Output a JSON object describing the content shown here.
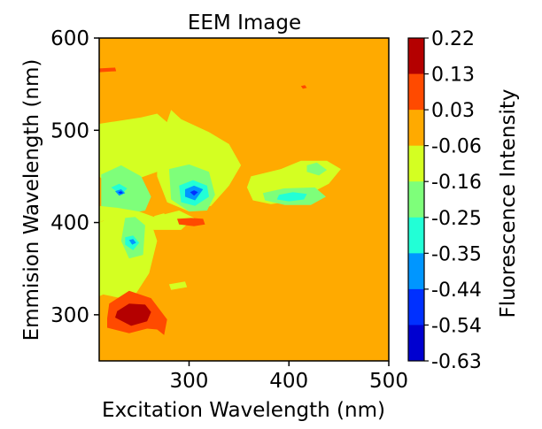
{
  "chart_data": {
    "type": "heatmap",
    "title": "EEM Image",
    "xlabel": "Excitation Wavelength (nm)",
    "ylabel": "Emmision Wavelength (nm)",
    "colorbar_label": "Fluorescence Intensity",
    "xlim": [
      210,
      500
    ],
    "ylim": [
      250,
      600
    ],
    "xticks": [
      300,
      400,
      500
    ],
    "yticks": [
      300,
      400,
      500,
      600
    ],
    "background_level": 0.03,
    "levels": [
      "0.22",
      "0.13",
      "0.03",
      "-0.06",
      "-0.16",
      "-0.25",
      "-0.35",
      "-0.44",
      "-0.54",
      "-0.63"
    ],
    "level_colors": [
      "#b40000",
      "#ff4a00",
      "#ffaa00",
      "#d4ff22",
      "#7eff7a",
      "#22ffd6",
      "#0096ff",
      "#0030ff",
      "#0000d0",
      "#00007a"
    ],
    "regions": [
      {
        "name": "peak-a-outer",
        "level": "-0.06",
        "x": [
          210,
          252,
          268,
          282,
          285,
          268,
          250,
          232,
          212,
          210
        ],
        "y": [
          507,
          514,
          518,
          505,
          478,
          455,
          448,
          462,
          448,
          450
        ]
      },
      {
        "name": "peak-b-outer",
        "level": "-0.06",
        "x": [
          268,
          282,
          292,
          320,
          340,
          352,
          340,
          322,
          300,
          278,
          268
        ],
        "y": [
          478,
          522,
          512,
          498,
          485,
          462,
          440,
          418,
          412,
          422,
          450
        ]
      },
      {
        "name": "peak-a-mid",
        "level": "-0.16",
        "x": [
          212,
          232,
          252,
          262,
          256,
          232,
          212
        ],
        "y": [
          452,
          462,
          450,
          428,
          413,
          408,
          418
        ]
      },
      {
        "name": "peak-a-inner",
        "level": "-0.25",
        "x": [
          222,
          230,
          238,
          232
        ],
        "y": [
          438,
          442,
          437,
          430
        ]
      },
      {
        "name": "peak-a-core",
        "level": "-0.35",
        "x": [
          226,
          232,
          236,
          230
        ],
        "y": [
          434,
          436,
          432,
          429
        ]
      },
      {
        "name": "peak-a-center",
        "level": "-0.44",
        "x": [
          229,
          232,
          234,
          231
        ],
        "y": [
          433,
          434,
          432,
          431
        ]
      },
      {
        "name": "peak-b-mid",
        "level": "-0.16",
        "x": [
          280,
          300,
          320,
          326,
          318,
          300,
          282
        ],
        "y": [
          458,
          463,
          455,
          430,
          413,
          412,
          425
        ]
      },
      {
        "name": "peak-b-inner",
        "level": "-0.25",
        "x": [
          290,
          304,
          318,
          320,
          306,
          292
        ],
        "y": [
          440,
          446,
          440,
          428,
          418,
          422
        ]
      },
      {
        "name": "peak-b-core",
        "level": "-0.35",
        "x": [
          296,
          305,
          314,
          306,
          296
        ],
        "y": [
          436,
          440,
          436,
          424,
          428
        ]
      },
      {
        "name": "peak-b-center",
        "level": "-0.44",
        "x": [
          301,
          305,
          309,
          305
        ],
        "y": [
          433,
          435,
          433,
          429
        ]
      },
      {
        "name": "upper-band",
        "level": "-0.06",
        "x": [
          210,
          228,
          250,
          265,
          290,
          305,
          292,
          265,
          250,
          238,
          214,
          210
        ],
        "y": [
          418,
          416,
          412,
          406,
          413,
          405,
          392,
          392,
          396,
          400,
          402,
          400
        ]
      },
      {
        "name": "mid-column",
        "level": "-0.06",
        "x": [
          210,
          238,
          256,
          262,
          268,
          260,
          245,
          232,
          214,
          210
        ],
        "y": [
          400,
          412,
          406,
          400,
          380,
          345,
          320,
          318,
          322,
          320
        ]
      },
      {
        "name": "mid-column-green",
        "level": "-0.16",
        "x": [
          236,
          246,
          256,
          254,
          240,
          232
        ],
        "y": [
          405,
          406,
          397,
          365,
          361,
          380
        ]
      },
      {
        "name": "mid-column-green2",
        "level": "-0.25",
        "x": [
          236,
          244,
          250,
          244,
          236
        ],
        "y": [
          384,
          386,
          378,
          370,
          376
        ]
      },
      {
        "name": "mid-column-core",
        "level": "-0.35",
        "x": [
          240,
          244,
          247,
          243
        ],
        "y": [
          381,
          382,
          378,
          376
        ]
      },
      {
        "name": "ex400-outer",
        "level": "-0.06",
        "x": [
          362,
          392,
          412,
          438,
          452,
          440,
          408,
          382,
          364,
          358
        ],
        "y": [
          450,
          458,
          467,
          467,
          458,
          442,
          424,
          420,
          424,
          438
        ]
      },
      {
        "name": "ex400-mid",
        "level": "-0.16",
        "x": [
          374,
          395,
          426,
          437,
          422,
          396,
          376
        ],
        "y": [
          432,
          437,
          438,
          428,
          419,
          419,
          424
        ]
      },
      {
        "name": "ex400-mid2",
        "level": "-0.16",
        "x": [
          418,
          428,
          438,
          430,
          418
        ],
        "y": [
          462,
          465,
          457,
          451,
          455
        ]
      },
      {
        "name": "ex400-core",
        "level": "-0.25",
        "x": [
          390,
          404,
          418,
          415,
          400,
          388
        ],
        "y": [
          430,
          433,
          431,
          425,
          423,
          425
        ]
      },
      {
        "name": "red-blob-outer",
        "level": "0.13",
        "x": [
          218,
          240,
          258,
          268,
          275,
          278,
          262,
          240,
          220,
          218
        ],
        "y": [
          286,
          280,
          285,
          284,
          278,
          295,
          318,
          326,
          312,
          296
        ]
      },
      {
        "name": "red-blob-inner",
        "level": "0.22",
        "x": [
          226,
          242,
          258,
          262,
          256,
          240,
          228
        ],
        "y": [
          297,
          288,
          293,
          303,
          311,
          312,
          304
        ]
      },
      {
        "name": "small-red-1",
        "level": "0.13",
        "x": [
          210,
          226,
          227,
          210
        ],
        "y": [
          567,
          568,
          564,
          563
        ]
      },
      {
        "name": "small-red-2",
        "level": "0.13",
        "x": [
          288,
          302,
          314,
          316,
          305,
          290
        ],
        "y": [
          404,
          405,
          404,
          398,
          396,
          398
        ]
      },
      {
        "name": "small-red-3",
        "level": "0.13",
        "x": [
          412,
          416,
          418,
          414
        ],
        "y": [
          548,
          549,
          546,
          545
        ]
      },
      {
        "name": "small-red-4",
        "level": "0.13",
        "x": [
          301,
          305,
          305,
          301
        ],
        "y": [
          402,
          402,
          398,
          398
        ]
      },
      {
        "name": "small-yellow-1",
        "level": "-0.06",
        "x": [
          280,
          296,
          298,
          282
        ],
        "y": [
          333,
          336,
          330,
          327
        ]
      },
      {
        "name": "small-yellow-2",
        "level": "-0.06",
        "x": [
          265,
          275,
          277,
          267
        ],
        "y": [
          407,
          410,
          406,
          403
        ]
      }
    ]
  }
}
